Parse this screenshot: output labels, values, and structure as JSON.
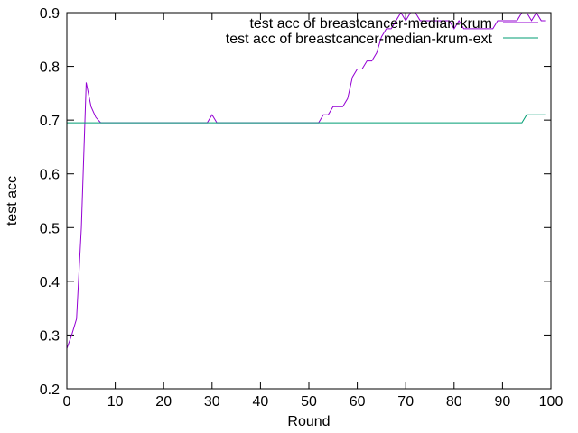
{
  "chart_data": {
    "type": "line",
    "title": "",
    "xlabel": "Round",
    "ylabel": "test acc",
    "xlim": [
      0,
      100
    ],
    "ylim": [
      0.2,
      0.9
    ],
    "xticks": [
      0,
      10,
      20,
      30,
      40,
      50,
      60,
      70,
      80,
      90,
      100
    ],
    "yticks": [
      0.2,
      0.3,
      0.4,
      0.5,
      0.6,
      0.7,
      0.8,
      0.9
    ],
    "ytick_labels": [
      "0.2",
      "0.3",
      "0.4",
      "0.5",
      "0.6",
      "0.7",
      "0.8",
      "0.9"
    ],
    "grid": false,
    "legend_position": "top-right",
    "series": [
      {
        "name": "test acc of breastcancer-median-krum",
        "color": "#9400d3",
        "x": [
          0,
          1,
          2,
          3,
          4,
          5,
          6,
          7,
          8,
          9,
          10,
          11,
          12,
          13,
          14,
          15,
          16,
          17,
          18,
          19,
          20,
          21,
          22,
          23,
          24,
          25,
          26,
          27,
          28,
          29,
          30,
          31,
          32,
          33,
          34,
          35,
          36,
          37,
          38,
          39,
          40,
          41,
          42,
          43,
          44,
          45,
          46,
          47,
          48,
          49,
          50,
          51,
          52,
          53,
          54,
          55,
          56,
          57,
          58,
          59,
          60,
          61,
          62,
          63,
          64,
          65,
          66,
          67,
          68,
          69,
          70,
          71,
          72,
          73,
          74,
          75,
          76,
          77,
          78,
          79,
          80,
          81,
          82,
          83,
          84,
          85,
          86,
          87,
          88,
          89,
          90,
          91,
          92,
          93,
          94,
          95,
          96,
          97,
          98,
          99
        ],
        "y": [
          0.275,
          0.3,
          0.33,
          0.5,
          0.77,
          0.725,
          0.705,
          0.695,
          0.695,
          0.695,
          0.695,
          0.695,
          0.695,
          0.695,
          0.695,
          0.695,
          0.695,
          0.695,
          0.695,
          0.695,
          0.695,
          0.695,
          0.695,
          0.695,
          0.695,
          0.695,
          0.695,
          0.695,
          0.695,
          0.695,
          0.71,
          0.695,
          0.695,
          0.695,
          0.695,
          0.695,
          0.695,
          0.695,
          0.695,
          0.695,
          0.695,
          0.695,
          0.695,
          0.695,
          0.695,
          0.695,
          0.695,
          0.695,
          0.695,
          0.695,
          0.695,
          0.695,
          0.695,
          0.71,
          0.71,
          0.725,
          0.725,
          0.725,
          0.74,
          0.78,
          0.795,
          0.795,
          0.81,
          0.81,
          0.825,
          0.855,
          0.87,
          0.87,
          0.885,
          0.9,
          0.885,
          0.9,
          0.9,
          0.885,
          0.885,
          0.885,
          0.885,
          0.885,
          0.885,
          0.885,
          0.87,
          0.885,
          0.87,
          0.87,
          0.87,
          0.87,
          0.87,
          0.87,
          0.87,
          0.885,
          0.885,
          0.885,
          0.885,
          0.885,
          0.9,
          0.9,
          0.885,
          0.9,
          0.885,
          0.885
        ]
      },
      {
        "name": "test acc of breastcancer-median-krum-ext",
        "color": "#009e73",
        "x": [
          0,
          94,
          95,
          96,
          97,
          98,
          99
        ],
        "y": [
          0.695,
          0.695,
          0.71,
          0.71,
          0.71,
          0.71,
          0.71
        ]
      }
    ]
  }
}
